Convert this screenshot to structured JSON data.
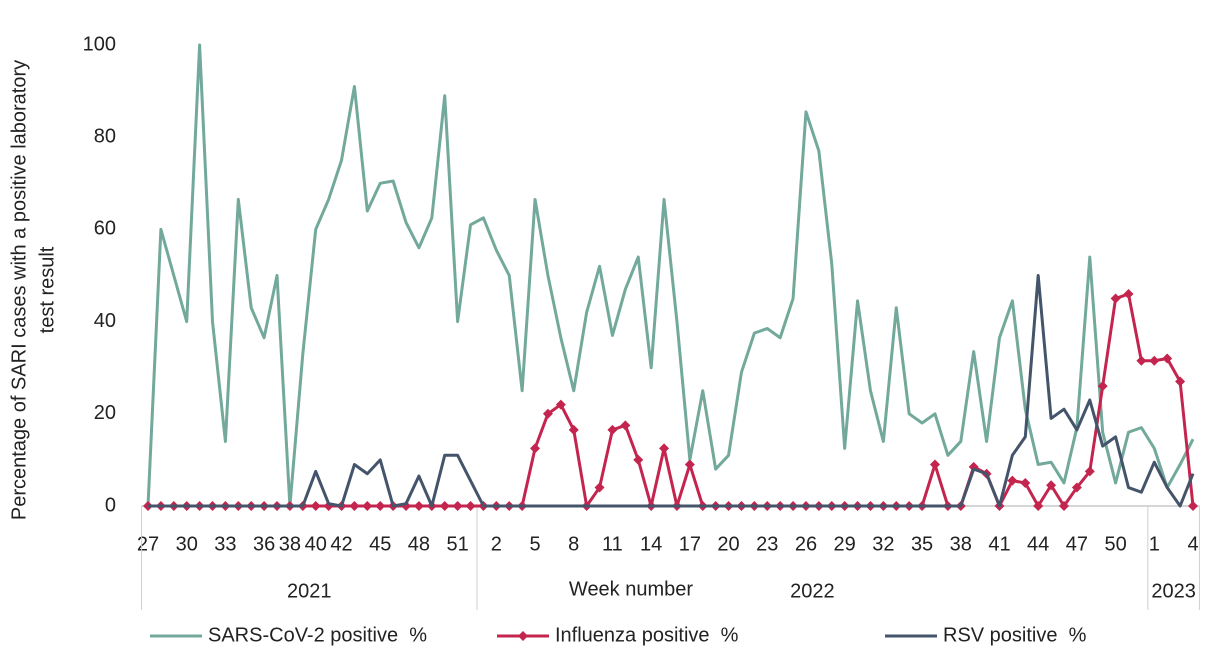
{
  "chart_data": {
    "type": "line",
    "y_label": [
      "Percentage  of SARI cases with a positive laboratory",
      "test result"
    ],
    "x_label": "Week number",
    "categories": [
      "27",
      null,
      null,
      "30",
      null,
      null,
      "33",
      null,
      null,
      "36",
      null,
      "38",
      null,
      "40",
      null,
      "42",
      null,
      null,
      "45",
      null,
      null,
      "48",
      null,
      null,
      "51",
      null,
      null,
      "2",
      null,
      null,
      "5",
      null,
      null,
      "8",
      null,
      null,
      "11",
      null,
      null,
      "14",
      null,
      null,
      "17",
      null,
      null,
      "20",
      null,
      null,
      "23",
      null,
      null,
      "26",
      null,
      null,
      "29",
      null,
      null,
      "32",
      null,
      null,
      "35",
      null,
      null,
      "38",
      null,
      null,
      "41",
      null,
      null,
      "44",
      null,
      null,
      "47",
      null,
      null,
      "50",
      null,
      null,
      "1",
      null,
      null,
      "4"
    ],
    "groups": [
      {
        "label": "2021",
        "span": 26
      },
      {
        "label": "2022",
        "span": 52
      },
      {
        "label": "2023",
        "span": 4
      }
    ],
    "series": [
      {
        "name": "SARS-CoV-2 positive  %",
        "color": "#72a99b",
        "marker": "none",
        "values": [
          0,
          60,
          50,
          40,
          100,
          40,
          14,
          66.5,
          43,
          36.5,
          50,
          0,
          33,
          60,
          66.5,
          75,
          91,
          64,
          70,
          70.5,
          61.5,
          56,
          62.5,
          89,
          40,
          61,
          62.5,
          55.5,
          50,
          25,
          66.5,
          50,
          36.5,
          25,
          42,
          52,
          37,
          47,
          54,
          30,
          66.5,
          40,
          10,
          25,
          8,
          11,
          29,
          37.5,
          38.5,
          36.5,
          45,
          85.5,
          77,
          52.5,
          12.5,
          44.5,
          25,
          14,
          43,
          20,
          18,
          20,
          11,
          14,
          33.5,
          14,
          36.5,
          44.5,
          21,
          9,
          9.5,
          5,
          17,
          54,
          16,
          5,
          16,
          17,
          12.5,
          4,
          9,
          14.5
        ]
      },
      {
        "name": "Influenza positive  %",
        "color": "#c4254f",
        "marker": "diamond",
        "values": [
          0,
          0,
          0,
          0,
          0,
          0,
          0,
          0,
          0,
          0,
          0,
          0,
          0,
          0,
          0,
          0,
          0,
          0,
          0,
          0,
          0,
          0,
          0,
          0,
          0,
          0,
          0,
          0,
          0,
          0,
          12.5,
          20,
          22,
          16.5,
          0,
          4,
          16.5,
          17.5,
          10,
          0,
          12.5,
          0,
          9,
          0,
          0,
          0,
          0,
          0,
          0,
          0,
          0,
          0,
          0,
          0,
          0,
          0,
          0,
          0,
          0,
          0,
          0,
          9,
          0,
          0,
          8.5,
          7,
          0,
          5.5,
          5,
          0,
          4.5,
          0,
          4,
          7.5,
          26,
          45,
          46,
          31.5,
          31.5,
          32,
          27,
          0
        ]
      },
      {
        "name": "RSV positive  %",
        "color": "#44546a",
        "marker": "none",
        "values": [
          0,
          0,
          0,
          0,
          0,
          0,
          0,
          0,
          0,
          0,
          0,
          0,
          0,
          7.5,
          0.5,
          0,
          9,
          7,
          10,
          0,
          0.5,
          6.5,
          0,
          11,
          11,
          5.5,
          0,
          0,
          0,
          0,
          0,
          0,
          0,
          0,
          0,
          0,
          0,
          0,
          0,
          0,
          0,
          0,
          0,
          0,
          0,
          0,
          0,
          0,
          0,
          0,
          0,
          0,
          0,
          0,
          0,
          0,
          0,
          0,
          0,
          0,
          0,
          0,
          0,
          0,
          8,
          7,
          0,
          11,
          15,
          50,
          19,
          21,
          16.5,
          23,
          13,
          15,
          4,
          3,
          9.5,
          4,
          0,
          7
        ]
      }
    ],
    "ylim": [
      0,
      100
    ],
    "yticks": [
      0,
      20,
      40,
      60,
      80,
      100
    ],
    "legend": "bottom"
  }
}
